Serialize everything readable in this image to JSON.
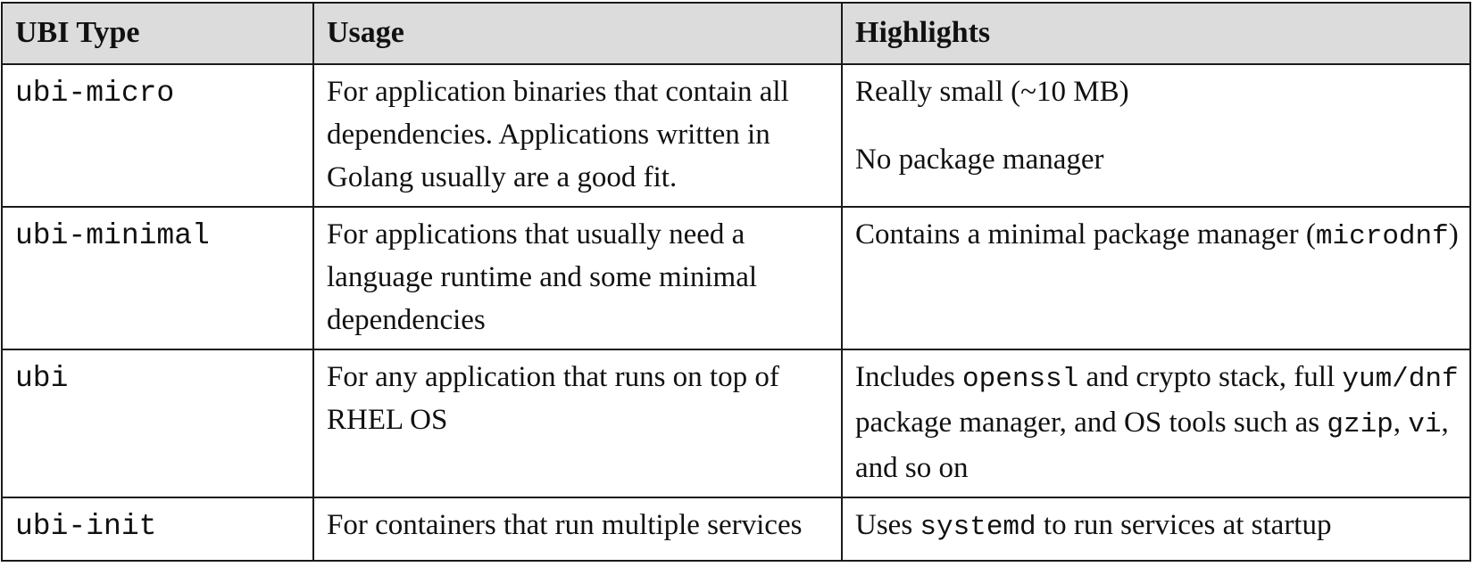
{
  "table": {
    "headers": [
      "UBI Type",
      "Usage",
      "Highlights"
    ],
    "rows": [
      {
        "type": "ubi-micro",
        "usage": "For application binaries that contain all dependencies. Applications written in Golang usually are a good fit.",
        "highlights": [
          "Really small (~10 MB)",
          "No package manager"
        ]
      },
      {
        "type": "ubi-minimal",
        "usage": "For applications that usually need a language runtime and some minimal dependencies",
        "highlights_parts": [
          "Contains a minimal package manager (",
          "microdnf",
          ")"
        ]
      },
      {
        "type": "ubi",
        "usage": "For any application that runs on top of RHEL OS",
        "highlights_parts": [
          "Includes ",
          "openssl",
          " and crypto stack, full ",
          "yum/dnf",
          " package manager, and OS tools such as ",
          "gzip",
          ", ",
          "vi",
          ", and so on"
        ]
      },
      {
        "type": "ubi-init",
        "usage": "For containers that run multiple services",
        "highlights_parts": [
          "Uses ",
          "systemd",
          " to run services at startup"
        ]
      }
    ]
  }
}
